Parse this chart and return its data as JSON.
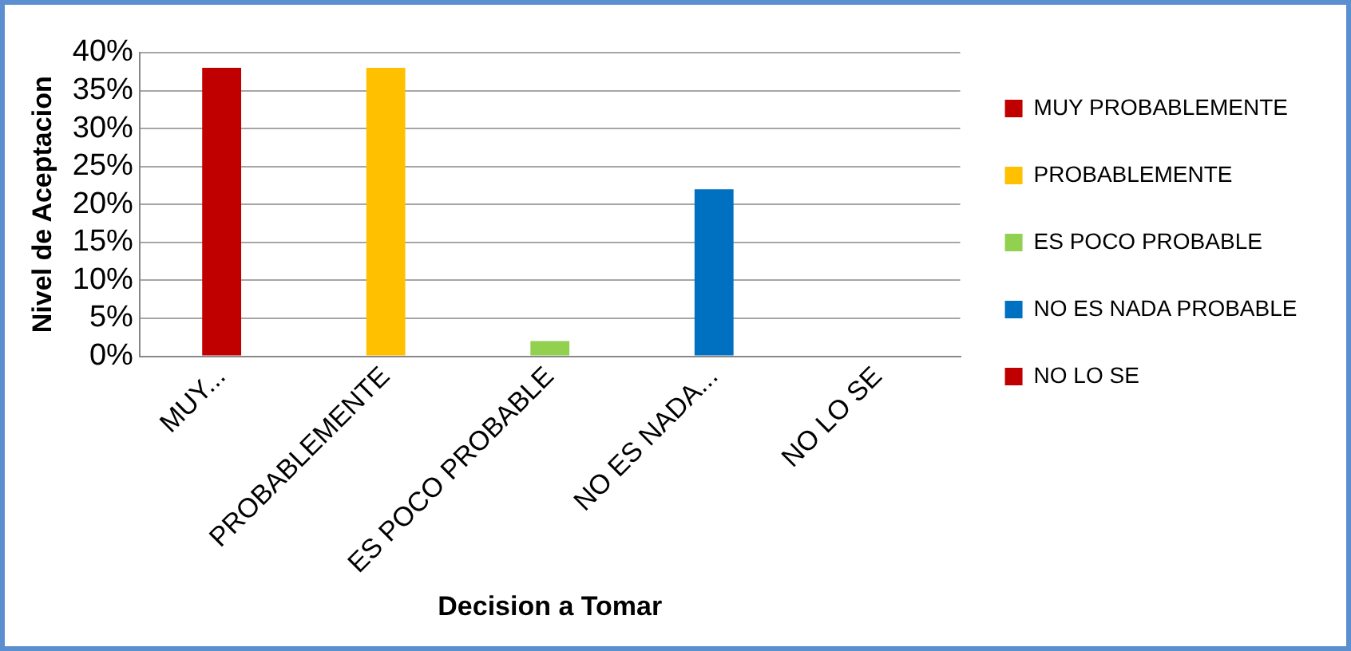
{
  "chart_data": {
    "type": "bar",
    "xlabel": "Decision a Tomar",
    "ylabel": "Nivel de Aceptacion",
    "categories": [
      "MUY...",
      "PROBABLEMENTE",
      "ES POCO PROBABLE",
      "NO ES NADA...",
      "NO LO SE"
    ],
    "series": [
      {
        "name": "MUY PROBABLEMENTE",
        "color": "#c00000",
        "values": [
          38,
          null,
          null,
          null,
          null
        ]
      },
      {
        "name": "PROBABLEMENTE",
        "color": "#ffc000",
        "values": [
          null,
          38,
          null,
          null,
          null
        ]
      },
      {
        "name": "ES POCO PROBABLE",
        "color": "#92d050",
        "values": [
          null,
          null,
          2,
          null,
          null
        ]
      },
      {
        "name": "NO ES NADA PROBABLE",
        "color": "#0070c0",
        "values": [
          null,
          null,
          null,
          22,
          null
        ]
      },
      {
        "name": "NO LO SE",
        "color": "#c00000",
        "values": [
          null,
          null,
          null,
          null,
          0
        ]
      }
    ],
    "ylim": [
      0,
      40
    ],
    "yticks": [
      {
        "value": 0,
        "label": "0%"
      },
      {
        "value": 5,
        "label": "5%"
      },
      {
        "value": 10,
        "label": "10%"
      },
      {
        "value": 15,
        "label": "15%"
      },
      {
        "value": 20,
        "label": "20%"
      },
      {
        "value": 25,
        "label": "25%"
      },
      {
        "value": 30,
        "label": "30%"
      },
      {
        "value": 35,
        "label": "35%"
      },
      {
        "value": 40,
        "label": "40%"
      }
    ],
    "grid": "y",
    "legend": "right"
  }
}
